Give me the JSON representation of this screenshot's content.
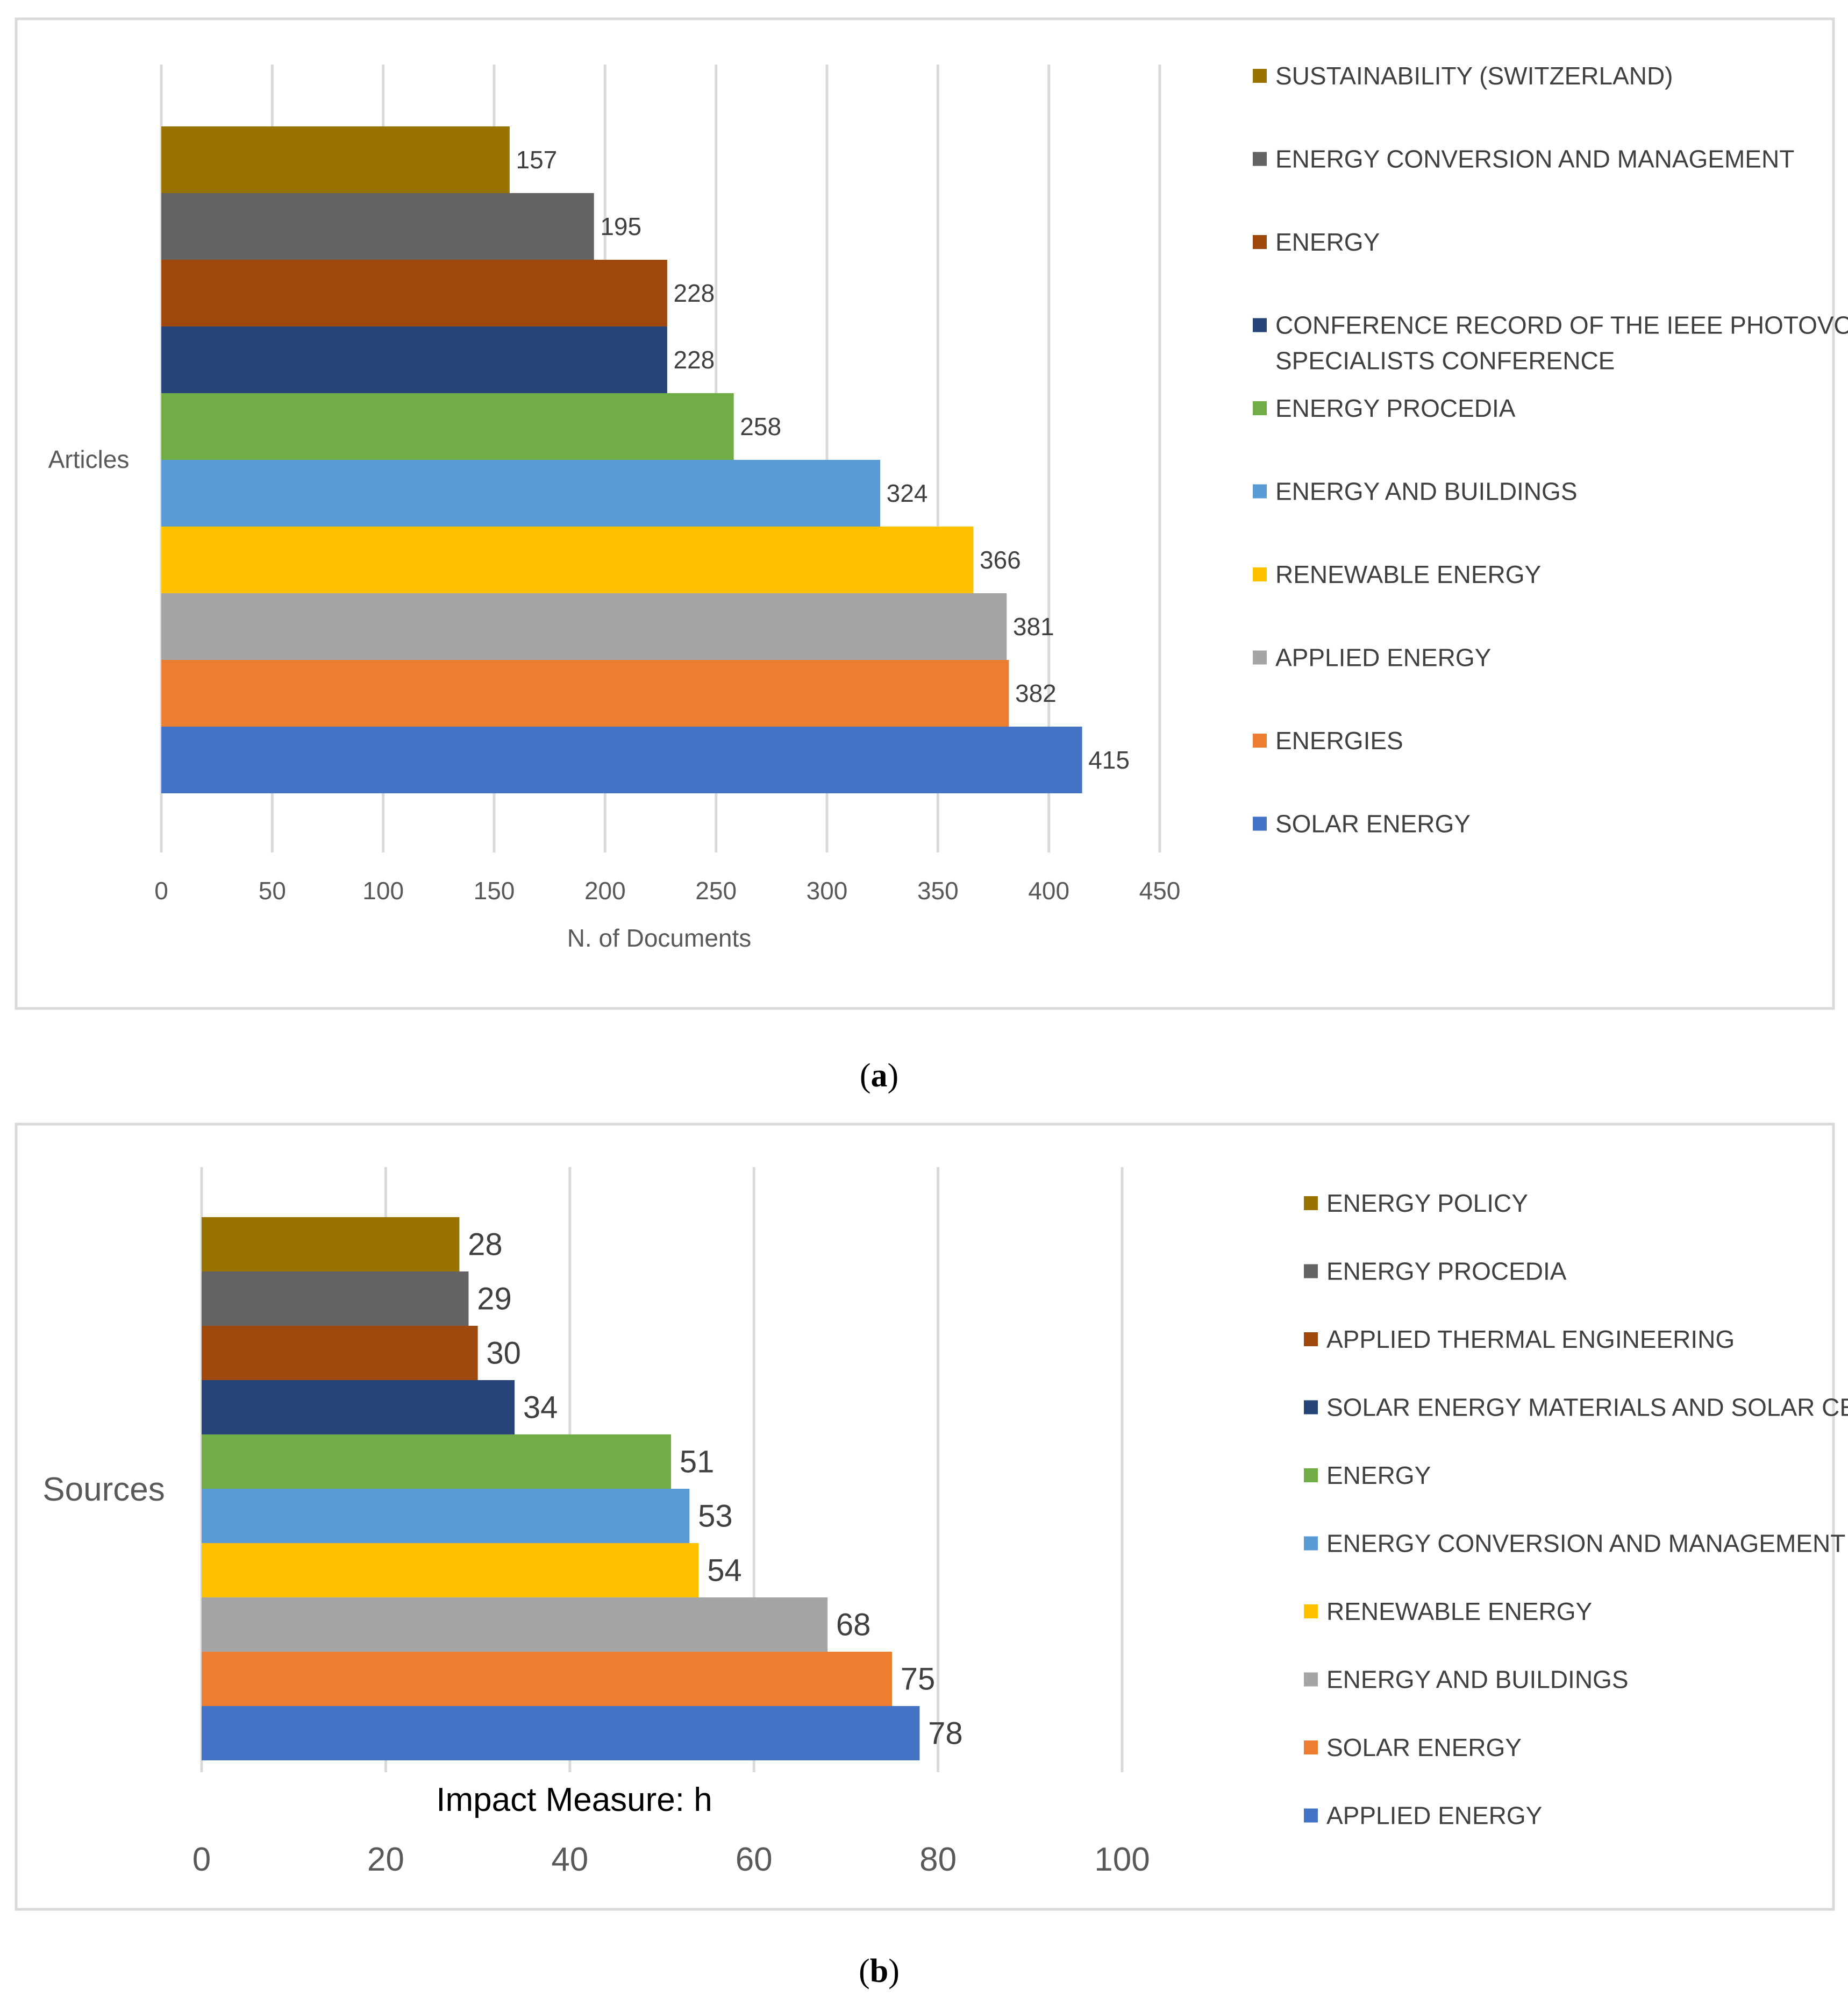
{
  "chart_data": [
    {
      "type": "bar",
      "orientation": "horizontal",
      "caption": "a",
      "category_axis_label": "Articles",
      "xlabel": "N. of Documents",
      "xlim": [
        0,
        450
      ],
      "xticks": [
        0,
        50,
        100,
        150,
        200,
        250,
        300,
        350,
        400,
        450
      ],
      "grid": true,
      "legend_position": "right",
      "series": [
        {
          "name": "SUSTAINABILITY (SWITZERLAND)",
          "value": 157,
          "color": "#997300"
        },
        {
          "name": "ENERGY CONVERSION AND MANAGEMENT",
          "value": 195,
          "color": "#636363"
        },
        {
          "name": "ENERGY",
          "value": 228,
          "color": "#9e480e"
        },
        {
          "name": "CONFERENCE RECORD OF THE IEEE PHOTOVOLTAIC SPECIALISTS CONFERENCE",
          "value": 228,
          "color": "#264478"
        },
        {
          "name": "ENERGY PROCEDIA",
          "value": 258,
          "color": "#70ad47"
        },
        {
          "name": "ENERGY AND BUILDINGS",
          "value": 324,
          "color": "#5b9bd5"
        },
        {
          "name": "RENEWABLE ENERGY",
          "value": 366,
          "color": "#ffc000"
        },
        {
          "name": "APPLIED ENERGY",
          "value": 381,
          "color": "#a5a5a5"
        },
        {
          "name": "ENERGIES",
          "value": 382,
          "color": "#ed7d31"
        },
        {
          "name": "SOLAR ENERGY",
          "value": 415,
          "color": "#4472c4"
        }
      ]
    },
    {
      "type": "bar",
      "orientation": "horizontal",
      "caption": "b",
      "category_axis_label": "Sources",
      "xlabel": "Impact Measure: h",
      "xlim": [
        0,
        100
      ],
      "xticks": [
        0,
        20,
        40,
        60,
        80,
        100
      ],
      "grid": true,
      "legend_position": "right",
      "series": [
        {
          "name": "ENERGY POLICY",
          "value": 28,
          "color": "#997300"
        },
        {
          "name": "ENERGY PROCEDIA",
          "value": 29,
          "color": "#636363"
        },
        {
          "name": "APPLIED THERMAL ENGINEERING",
          "value": 30,
          "color": "#9e480e"
        },
        {
          "name": "SOLAR ENERGY MATERIALS AND SOLAR CELLS",
          "value": 34,
          "color": "#264478"
        },
        {
          "name": "ENERGY",
          "value": 51,
          "color": "#70ad47"
        },
        {
          "name": "ENERGY CONVERSION AND MANAGEMENT",
          "value": 53,
          "color": "#5b9bd5"
        },
        {
          "name": "RENEWABLE ENERGY",
          "value": 54,
          "color": "#ffc000"
        },
        {
          "name": "ENERGY AND BUILDINGS",
          "value": 68,
          "color": "#a5a5a5"
        },
        {
          "name": "SOLAR ENERGY",
          "value": 75,
          "color": "#ed7d31"
        },
        {
          "name": "APPLIED ENERGY",
          "value": 78,
          "color": "#4472c4"
        }
      ]
    }
  ]
}
